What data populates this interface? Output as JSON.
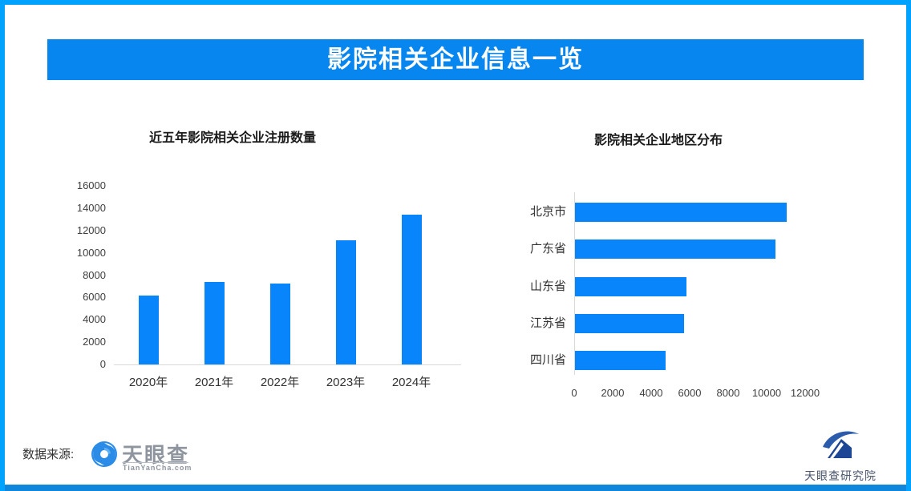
{
  "banner": {
    "title": "影院相关企业信息一览"
  },
  "colors": {
    "frame": "#00a2ff",
    "banner": "#0886f0",
    "bar": "#0885fa",
    "bottom_strip": "#0d86dc",
    "axis_line": "#d9d9d9"
  },
  "chart_data": [
    {
      "type": "bar",
      "orientation": "vertical",
      "title": "近五年影院相关企业注册数量",
      "categories": [
        "2020年",
        "2021年",
        "2022年",
        "2023年",
        "2024年"
      ],
      "values": [
        6200,
        7400,
        7250,
        11150,
        13400
      ],
      "xlabel": "",
      "ylabel": "",
      "ylim": [
        0,
        16000
      ],
      "yticks": [
        0,
        2000,
        4000,
        6000,
        8000,
        10000,
        12000,
        14000,
        16000
      ],
      "grid": false,
      "legend": false,
      "bar_color": "#0885fa"
    },
    {
      "type": "bar",
      "orientation": "horizontal",
      "title": "影院相关企业地区分布",
      "categories": [
        "北京市",
        "广东省",
        "山东省",
        "江苏省",
        "四川省"
      ],
      "values": [
        11000,
        10400,
        5800,
        5650,
        4700
      ],
      "xlabel": "",
      "ylabel": "",
      "xlim": [
        0,
        12000
      ],
      "xticks": [
        0,
        2000,
        4000,
        6000,
        8000,
        10000,
        12000
      ],
      "grid": false,
      "legend": false,
      "bar_color": "#0885fa"
    }
  ],
  "footer": {
    "source_label": "数据来源:",
    "tyc_name": "天眼查",
    "tyc_domain": "TianYanCha.com",
    "institute_name": "天眼查研究院"
  }
}
